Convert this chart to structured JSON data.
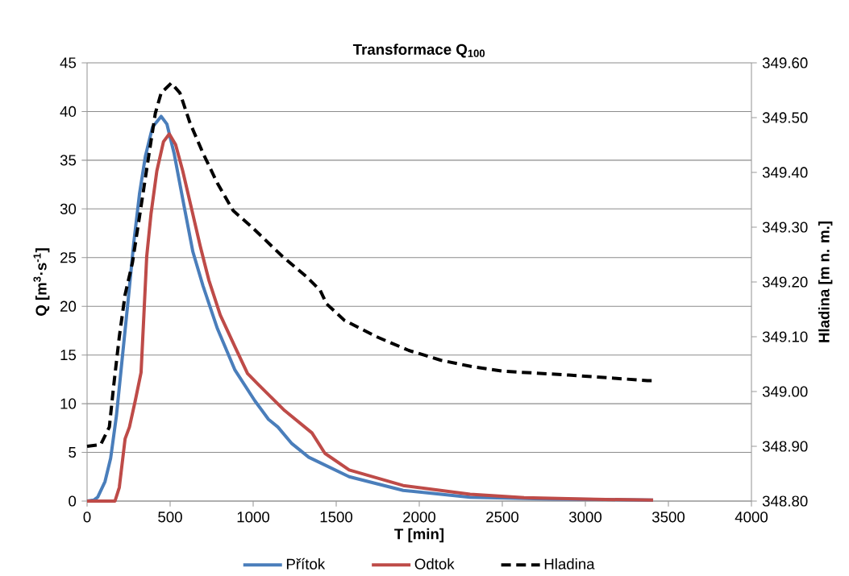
{
  "chart_data": {
    "type": "line",
    "title": "Transformace Q$_{100}$",
    "xlabel": "T [min]",
    "ylabel": "Q [m$^{3}$·s$^{-1}$]",
    "y2label": "Hladina [m n. m.]",
    "xlim": [
      0,
      4000
    ],
    "xticks": [
      0,
      500,
      1000,
      1500,
      2000,
      2500,
      3000,
      3500,
      4000
    ],
    "ylim": [
      0,
      45
    ],
    "yticks": [
      0,
      5,
      10,
      15,
      20,
      25,
      30,
      35,
      40,
      45
    ],
    "y2lim": [
      348.8,
      349.6
    ],
    "y2ticks": [
      {
        "value": 348.8,
        "label": "348.80"
      },
      {
        "value": 348.9,
        "label": "348.90"
      },
      {
        "value": 349.0,
        "label": "349.00"
      },
      {
        "value": 349.1,
        "label": "349.10"
      },
      {
        "value": 349.2,
        "label": "349.20"
      },
      {
        "value": 349.3,
        "label": "349.30"
      },
      {
        "value": 349.4,
        "label": "349.40"
      },
      {
        "value": 349.5,
        "label": "349.50"
      },
      {
        "value": 349.6,
        "label": "349.60"
      }
    ],
    "grid": "y",
    "legend": "bottom",
    "marker": "none",
    "series": [
      {
        "name": "Přítok",
        "color": "#4a7ebb",
        "line_style": "solid",
        "x": [
          0,
          40,
          64,
          108,
          142,
          177,
          212,
          247,
          281,
          316,
          351,
          394,
          446,
          481,
          524,
          576,
          637,
          698,
          785,
          889,
          1010,
          1092,
          1149,
          1233,
          1335,
          1578,
          1903,
          2306,
          2800,
          3408
        ],
        "values": [
          0,
          0.1,
          0.4,
          2.0,
          4.4,
          8.8,
          14.7,
          20.6,
          26.5,
          31.6,
          35.4,
          38.4,
          39.5,
          38.7,
          35.7,
          31.0,
          25.6,
          22.1,
          17.7,
          13.5,
          10.3,
          8.4,
          7.6,
          5.9,
          4.5,
          2.5,
          1.1,
          0.4,
          0.2,
          0.1
        ]
      },
      {
        "name": "Odtok",
        "color": "#be4b48",
        "line_style": "solid",
        "x": [
          0,
          168,
          194,
          229,
          255,
          290,
          325,
          342,
          359,
          385,
          420,
          460,
          495,
          533,
          576,
          628,
          681,
          733,
          802,
          889,
          966,
          1029,
          1189,
          1354,
          1432,
          1578,
          1903,
          2306,
          2631,
          3000,
          3408
        ],
        "values": [
          0,
          0,
          1.4,
          6.4,
          7.6,
          10.3,
          13.2,
          19.1,
          25.1,
          29.5,
          33.9,
          36.9,
          37.7,
          36.6,
          33.9,
          30.1,
          26.2,
          22.7,
          19.1,
          15.9,
          13.1,
          12.0,
          9.3,
          7.0,
          4.9,
          3.2,
          1.6,
          0.7,
          0.35,
          0.2,
          0.1
        ]
      },
      {
        "name": "Hladina",
        "color": "#000000",
        "line_style": "dashed",
        "axis": "y2",
        "x": [
          0,
          82,
          134,
          160,
          194,
          229,
          273,
          316,
          368,
          411,
          446,
          507,
          559,
          620,
          698,
          785,
          880,
          993,
          1175,
          1320,
          1403,
          1442,
          1549,
          1743,
          1937,
          2131,
          2325,
          2510,
          2900,
          3374,
          3408
        ],
        "values": [
          348.9,
          348.903,
          348.935,
          349.01,
          349.1,
          349.177,
          349.235,
          349.32,
          349.424,
          349.508,
          349.545,
          349.563,
          349.545,
          349.49,
          349.435,
          349.38,
          349.33,
          349.3,
          349.247,
          349.21,
          349.185,
          349.16,
          349.13,
          349.1,
          349.075,
          349.057,
          349.045,
          349.037,
          349.03,
          349.02,
          349.02
        ]
      }
    ]
  }
}
